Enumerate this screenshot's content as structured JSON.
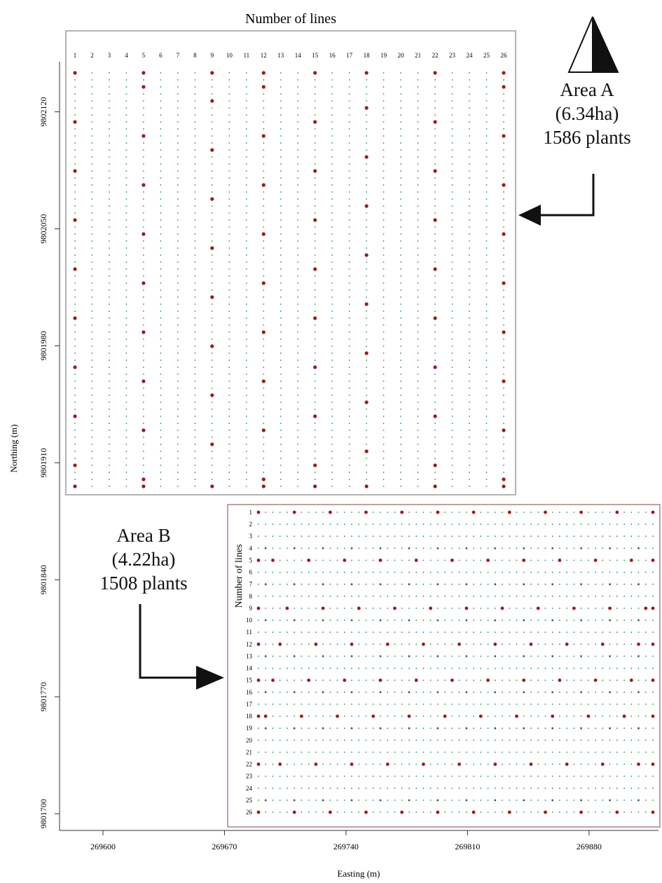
{
  "chart_data": {
    "type": "scatter",
    "xlabel": "Easting (m)",
    "ylabel": "Northing (m)",
    "x_ticks": [
      269600,
      269670,
      269740,
      269810,
      269880
    ],
    "y_ticks": [
      9801700,
      9801770,
      9801840,
      9801910,
      9801980,
      9802050,
      9802120
    ],
    "xlim": [
      269575,
      269920
    ],
    "ylim": [
      9801690,
      9802150
    ],
    "series": [
      {
        "name": "",
        "color": "#9b1c1c"
      },
      {
        "name": "",
        "color": "#2e8b57"
      }
    ],
    "panels": [
      {
        "id": "A",
        "axis_title": "Number of lines",
        "line_orientation": "vertical",
        "line_labels": [
          "1",
          "2",
          "3",
          "4",
          "5",
          "6",
          "7",
          "8",
          "9",
          "10",
          "11",
          "12",
          "13",
          "14",
          "15",
          "16",
          "17",
          "18",
          "19",
          "20",
          "21",
          "22",
          "23",
          "24",
          "25",
          "26"
        ],
        "easting_range": [
          269585,
          269835
        ],
        "northing_range": [
          9801866,
          9802125
        ],
        "annotation": {
          "name": "Area A",
          "area": "(6.34ha)",
          "plants": "1586 plants"
        }
      },
      {
        "id": "B",
        "axis_title": "Number of lines",
        "line_orientation": "horizontal",
        "line_labels": [
          "1",
          "2",
          "3",
          "4",
          "5",
          "6",
          "7",
          "8",
          "9",
          "10",
          "11",
          "12",
          "13",
          "14",
          "15",
          "16",
          "17",
          "18",
          "19",
          "20",
          "21",
          "22",
          "23",
          "24",
          "25",
          "26"
        ],
        "easting_range": [
          269690,
          269915
        ],
        "northing_range": [
          9801698,
          9801855
        ],
        "annotation": {
          "name": "Area B",
          "area": "(4.22ha)",
          "plants": "1508 plants"
        }
      }
    ]
  },
  "icons": {
    "north_arrow": "north-arrow-icon",
    "pointer_arrow": "pointer-arrow-icon"
  }
}
